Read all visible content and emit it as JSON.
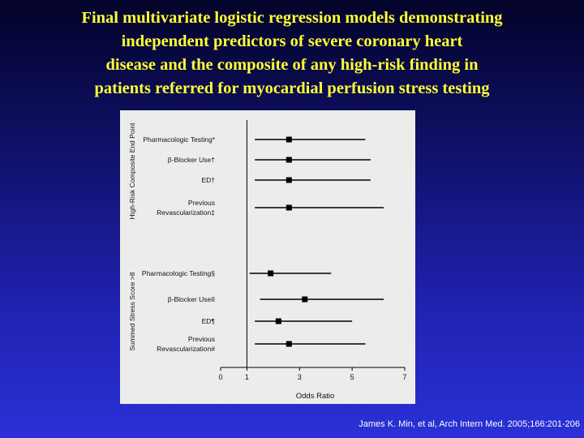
{
  "title_lines": [
    "Final multivariate logistic regression models demonstrating",
    "independent predictors of severe coronary heart",
    "disease and the composite of any high-risk finding in",
    "patients referred for myocardial perfusion stress testing"
  ],
  "citation": "James K. Min, et al, Arch Intern Med. 2005;166:201-206",
  "colors": {
    "title": "#ffff33",
    "panel": "#ececea",
    "marks": "#000000"
  },
  "chart_data": {
    "type": "forest",
    "xlabel": "Odds Ratio",
    "xlim": [
      0,
      7
    ],
    "xticks": [
      0,
      1,
      3,
      5,
      7
    ],
    "reference_line": 1,
    "groups": [
      {
        "name": "High-Risk Composite End Point",
        "rows": [
          {
            "label_lines": [
              "Pharmacologic Testing*"
            ],
            "or": 2.6,
            "ci": [
              1.3,
              5.5
            ]
          },
          {
            "label_lines": [
              "β-Blocker Use†"
            ],
            "or": 2.6,
            "ci": [
              1.3,
              5.7
            ]
          },
          {
            "label_lines": [
              "ED†"
            ],
            "or": 2.6,
            "ci": [
              1.3,
              5.7
            ]
          },
          {
            "label_lines": [
              "Previous",
              "Revascularization‡"
            ],
            "or": 2.6,
            "ci": [
              1.3,
              6.2
            ]
          }
        ]
      },
      {
        "name": "Summed Stress Score >8",
        "rows": [
          {
            "label_lines": [
              "Pharmacologic Testing§"
            ],
            "or": 1.9,
            "ci": [
              1.1,
              4.2
            ]
          },
          {
            "label_lines": [
              "β-Blocker UseII"
            ],
            "or": 3.2,
            "ci": [
              1.5,
              6.2
            ]
          },
          {
            "label_lines": [
              "ED¶"
            ],
            "or": 2.2,
            "ci": [
              1.3,
              5.0
            ]
          },
          {
            "label_lines": [
              "Previous",
              "Revascularization#"
            ],
            "or": 2.6,
            "ci": [
              1.3,
              5.5
            ]
          }
        ]
      }
    ]
  }
}
